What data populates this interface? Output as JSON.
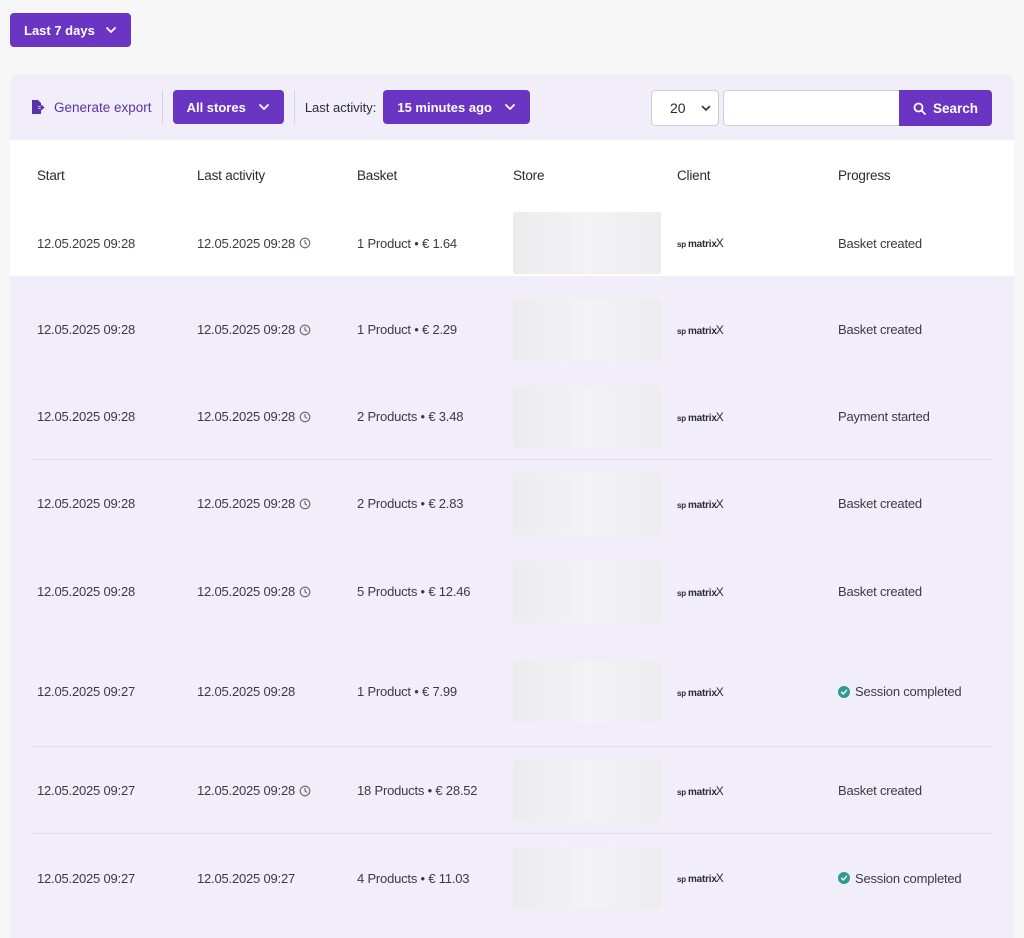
{
  "period_button": {
    "label": "Last 7 days"
  },
  "toolbar": {
    "export_label": "Generate export",
    "stores_label": "All stores",
    "last_activity_label": "Last activity:",
    "last_activity_value": "15 minutes ago",
    "page_size": "20",
    "search_value": "",
    "search_label": "Search"
  },
  "table": {
    "headers": [
      "Start",
      "Last activity",
      "Basket",
      "Store",
      "Client",
      "Progress"
    ],
    "client_logo": {
      "prefix": "sp",
      "name": "matrix",
      "mark": "X"
    },
    "rows": [
      {
        "start": "12.05.2025 09:28",
        "last": "12.05.2025 09:28",
        "clock": true,
        "basket": "1 Product • € 1.64",
        "progress": "Basket created",
        "completed": false
      },
      {
        "start": "12.05.2025 09:28",
        "last": "12.05.2025 09:28",
        "clock": true,
        "basket": "1 Product • € 2.29",
        "progress": "Basket created",
        "completed": false
      },
      {
        "start": "12.05.2025 09:28",
        "last": "12.05.2025 09:28",
        "clock": true,
        "basket": "2 Products • € 3.48",
        "progress": "Payment started",
        "completed": false
      },
      {
        "start": "12.05.2025 09:28",
        "last": "12.05.2025 09:28",
        "clock": true,
        "basket": "2 Products • € 2.83",
        "progress": "Basket created",
        "completed": false
      },
      {
        "start": "12.05.2025 09:28",
        "last": "12.05.2025 09:28",
        "clock": true,
        "basket": "5 Products • € 12.46",
        "progress": "Basket created",
        "completed": false
      },
      {
        "start": "12.05.2025 09:27",
        "last": "12.05.2025 09:28",
        "clock": false,
        "basket": "1 Product • € 7.99",
        "progress": "Session completed",
        "completed": true
      },
      {
        "start": "12.05.2025 09:27",
        "last": "12.05.2025 09:28",
        "clock": true,
        "basket": "18 Products • € 28.52",
        "progress": "Basket created",
        "completed": false
      },
      {
        "start": "12.05.2025 09:27",
        "last": "12.05.2025 09:27",
        "clock": false,
        "basket": "4 Products • € 11.03",
        "progress": "Session completed",
        "completed": true
      }
    ]
  }
}
